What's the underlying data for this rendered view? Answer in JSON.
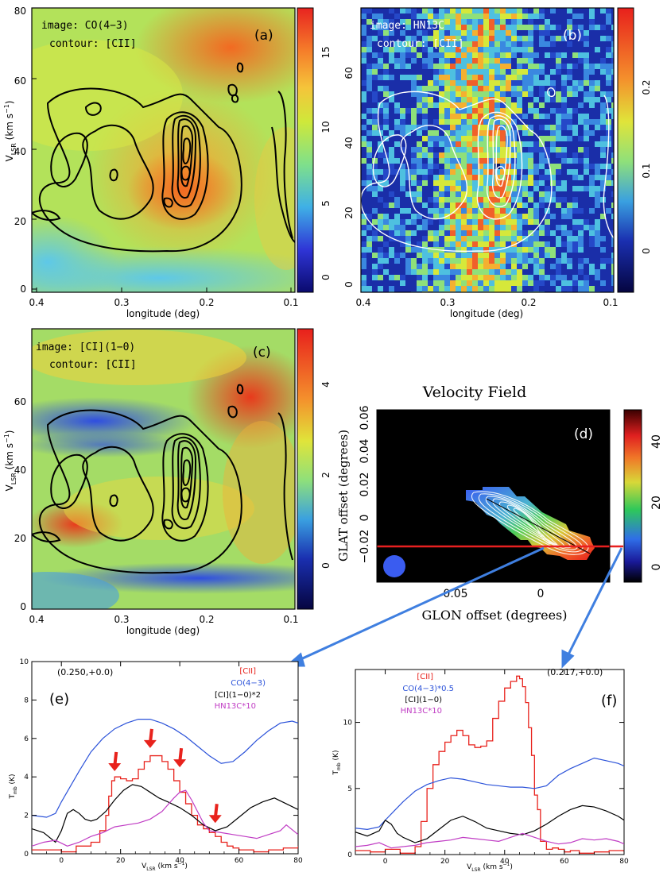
{
  "chart_data": [
    {
      "panel": "a",
      "type": "heatmap",
      "label": "(a)",
      "image_label": "image: CO(4−3)",
      "contour_label": "contour: [CII]",
      "xlabel": "longitude (deg)",
      "ylabel": "V",
      "ylabel_sub": "LSR",
      "ylabel_unit": "(km s",
      "ylabel_exp": "−1",
      "ylabel_close": ")",
      "xlim": [
        0.4,
        0.1
      ],
      "ylim": [
        -1,
        80
      ],
      "xticks": [
        "0.4",
        "0.3",
        "0.2",
        "0.1"
      ],
      "yticks": [
        "0",
        "20",
        "40",
        "60",
        "80"
      ],
      "colorbar_range": [
        -1,
        18
      ],
      "colorbar_ticks": [
        "0",
        "5",
        "10",
        "15"
      ]
    },
    {
      "panel": "b",
      "type": "heatmap",
      "label": "(b)",
      "image_label": "image: HN13C",
      "contour_label": "contour: [CII]",
      "xlabel": "longitude (deg)",
      "xlim": [
        0.4,
        0.1
      ],
      "ylim": [
        -1,
        77
      ],
      "xticks": [
        "0.4",
        "0.3",
        "0.2",
        "0.1"
      ],
      "yticks": [
        "0",
        "20",
        "40",
        "60"
      ],
      "colorbar_range": [
        -0.06,
        0.26
      ],
      "colorbar_ticks": [
        "0",
        "0.1",
        "0.2"
      ]
    },
    {
      "panel": "c",
      "type": "heatmap",
      "label": "(c)",
      "image_label": "image: [CI](1−0)",
      "contour_label": "contour: [CII]",
      "xlabel": "longitude (deg)",
      "ylabel": "V",
      "ylabel_sub": "LSR",
      "ylabel_unit": "(km s",
      "ylabel_exp": "−1",
      "ylabel_close": ")",
      "xlim": [
        0.4,
        0.1
      ],
      "ylim": [
        -1,
        77
      ],
      "xticks": [
        "0.4",
        "0.3",
        "0.2",
        "0.1"
      ],
      "yticks": [
        "0",
        "20",
        "40",
        "60"
      ],
      "colorbar_range": [
        -1,
        5.2
      ],
      "colorbar_ticks": [
        "0",
        "2",
        "4"
      ]
    },
    {
      "panel": "d",
      "type": "heatmap",
      "title": "Velocity Field",
      "label": "(d)",
      "xlabel": "GLON offset (degrees)",
      "ylabel": "GLAT offset (degrees)",
      "xlim": [
        0.095,
        -0.045
      ],
      "ylim": [
        -0.03,
        0.065
      ],
      "xticks": [
        "0.05",
        "0"
      ],
      "yticks": [
        "−0.02",
        "0",
        "0.02",
        "0.04",
        "0.06"
      ],
      "colorbar_range": [
        -5,
        48
      ],
      "colorbar_ticks": [
        "0",
        "20",
        "40"
      ]
    },
    {
      "panel": "e",
      "type": "line",
      "label": "(e)",
      "position_label": "(0.250,+0.0)",
      "xlabel_main": "V",
      "xlabel_sub": "LSR",
      "xlabel_unit": "(km s",
      "xlabel_exp": "−1",
      "xlabel_close": ")",
      "ylabel_main": "T",
      "ylabel_sub": "mb",
      "ylabel_unit": "(K)",
      "xlim": [
        -10,
        80
      ],
      "ylim": [
        0,
        10
      ],
      "xticks": [
        "0",
        "20",
        "40",
        "60",
        "80"
      ],
      "yticks": [
        "0",
        "2",
        "4",
        "6",
        "8",
        "10"
      ],
      "legend": [
        "[CII]",
        "CO(4−3)",
        "[CI](1−0)*2",
        "HN13C*10"
      ],
      "series": [
        {
          "name": "[CII]",
          "color": "#e8221c",
          "step": true,
          "x": [
            -10,
            -5,
            0,
            5,
            10,
            13,
            15,
            16,
            17,
            18,
            19,
            20,
            22,
            24,
            26,
            28,
            30,
            32,
            34,
            36,
            38,
            40,
            42,
            44,
            46,
            48,
            50,
            52,
            54,
            56,
            58,
            60,
            65,
            70,
            75,
            80
          ],
          "y": [
            0.2,
            0.2,
            0.1,
            0.4,
            0.6,
            1.2,
            2.0,
            3.0,
            3.8,
            4.0,
            4.0,
            3.9,
            3.8,
            3.9,
            4.4,
            4.8,
            5.1,
            5.1,
            4.8,
            4.4,
            3.8,
            3.2,
            2.6,
            2.0,
            1.5,
            1.3,
            1.1,
            0.9,
            0.6,
            0.4,
            0.3,
            0.2,
            0.1,
            0.2,
            0.3,
            0.4
          ]
        },
        {
          "name": "CO(4−3)",
          "color": "#2b52d9",
          "x": [
            -10,
            -5,
            -2,
            0,
            3,
            6,
            10,
            14,
            18,
            22,
            26,
            30,
            34,
            38,
            42,
            46,
            50,
            54,
            58,
            62,
            66,
            70,
            74,
            78,
            80
          ],
          "y": [
            2.0,
            1.9,
            2.1,
            2.7,
            3.5,
            4.3,
            5.3,
            6.0,
            6.5,
            6.8,
            7.0,
            7.0,
            6.8,
            6.5,
            6.1,
            5.6,
            5.1,
            4.7,
            4.8,
            5.3,
            5.9,
            6.4,
            6.8,
            6.9,
            6.8
          ]
        },
        {
          "name": "[CI](1−0)*2",
          "color": "#000000",
          "x": [
            -10,
            -6,
            -2,
            0,
            2,
            4,
            6,
            8,
            10,
            12,
            15,
            18,
            21,
            24,
            27,
            30,
            33,
            36,
            40,
            44,
            48,
            52,
            56,
            60,
            64,
            68,
            72,
            76,
            80
          ],
          "y": [
            1.3,
            1.1,
            0.6,
            1.2,
            2.1,
            2.3,
            2.1,
            1.8,
            1.7,
            1.8,
            2.2,
            2.8,
            3.3,
            3.6,
            3.5,
            3.2,
            2.9,
            2.7,
            2.4,
            2.0,
            1.5,
            1.2,
            1.4,
            1.9,
            2.4,
            2.7,
            2.9,
            2.6,
            2.3
          ]
        },
        {
          "name": "HN13C*10",
          "color": "#c03cc4",
          "x": [
            -10,
            -6,
            -2,
            2,
            6,
            10,
            14,
            18,
            22,
            26,
            30,
            34,
            38,
            40,
            42,
            44,
            46,
            48,
            50,
            54,
            58,
            62,
            66,
            70,
            74,
            76,
            80
          ],
          "y": [
            0.4,
            0.6,
            0.7,
            0.4,
            0.6,
            0.9,
            1.1,
            1.4,
            1.5,
            1.6,
            1.8,
            2.2,
            2.9,
            3.2,
            3.3,
            2.8,
            2.2,
            1.6,
            1.2,
            1.1,
            1.0,
            0.9,
            0.8,
            1.0,
            1.2,
            1.5,
            1.0
          ]
        }
      ],
      "arrow_x": [
        18,
        30,
        40,
        52
      ],
      "arrow_y": [
        4.3,
        5.5,
        4.5,
        1.6
      ]
    },
    {
      "panel": "f",
      "type": "line",
      "label": "(f)",
      "position_label": "(0.217,+0.0)",
      "xlabel_main": "V",
      "xlabel_sub": "LSR",
      "xlabel_unit": "(km s",
      "xlabel_exp": "−1",
      "xlabel_close": ")",
      "ylabel_main": "T",
      "ylabel_sub": "mb",
      "ylabel_unit": "(K)",
      "xlim": [
        -10,
        80
      ],
      "ylim": [
        0,
        14
      ],
      "xticks": [
        "0",
        "20",
        "40",
        "60",
        "80"
      ],
      "yticks": [
        "0",
        "5",
        "10"
      ],
      "legend": [
        "[CII]",
        "CO(4−3)*0.5",
        "[CI](1−0)",
        "HN13C*10"
      ],
      "series": [
        {
          "name": "[CII]",
          "color": "#e8221c",
          "step": true,
          "x": [
            -10,
            -5,
            0,
            5,
            10,
            12,
            14,
            16,
            18,
            20,
            22,
            24,
            26,
            28,
            30,
            32,
            34,
            36,
            38,
            40,
            42,
            44,
            45,
            46,
            47,
            48,
            49,
            50,
            51,
            52,
            54,
            56,
            58,
            60,
            62,
            65,
            70,
            75,
            80
          ],
          "y": [
            0.3,
            0.2,
            0.4,
            0.1,
            0.6,
            2.5,
            5.0,
            6.8,
            7.8,
            8.5,
            9.0,
            9.4,
            9.0,
            8.3,
            8.1,
            8.2,
            8.6,
            10.3,
            11.6,
            12.6,
            13.1,
            13.5,
            13.3,
            12.7,
            11.5,
            9.6,
            7.5,
            4.5,
            3.4,
            1.0,
            0.4,
            0.5,
            0.4,
            0.2,
            0.3,
            0.1,
            0.2,
            0.3,
            0.2
          ]
        },
        {
          "name": "CO(4−3)*0.5",
          "color": "#2b52d9",
          "x": [
            -10,
            -6,
            -2,
            0,
            3,
            6,
            10,
            14,
            18,
            22,
            26,
            30,
            34,
            38,
            42,
            46,
            50,
            54,
            58,
            62,
            66,
            70,
            74,
            78,
            80
          ],
          "y": [
            2.0,
            1.9,
            2.1,
            2.6,
            3.3,
            4.0,
            4.8,
            5.3,
            5.6,
            5.8,
            5.7,
            5.5,
            5.3,
            5.2,
            5.1,
            5.1,
            5.0,
            5.2,
            6.0,
            6.5,
            6.9,
            7.3,
            7.1,
            6.9,
            6.7
          ]
        },
        {
          "name": "[CI](1−0)",
          "color": "#000000",
          "x": [
            -10,
            -6,
            -2,
            0,
            2,
            4,
            6,
            8,
            10,
            14,
            18,
            22,
            26,
            30,
            34,
            38,
            42,
            46,
            50,
            54,
            58,
            62,
            66,
            70,
            74,
            78,
            80
          ],
          "y": [
            1.7,
            1.4,
            1.8,
            2.6,
            2.3,
            1.6,
            1.3,
            1.1,
            0.9,
            1.2,
            1.9,
            2.6,
            2.9,
            2.5,
            2.0,
            1.8,
            1.6,
            1.5,
            1.8,
            2.3,
            2.9,
            3.4,
            3.7,
            3.6,
            3.3,
            2.9,
            2.6
          ]
        },
        {
          "name": "HN13C*10",
          "color": "#c03cc4",
          "x": [
            -10,
            -6,
            -2,
            2,
            6,
            10,
            14,
            18,
            22,
            26,
            30,
            34,
            38,
            42,
            46,
            50,
            54,
            58,
            62,
            66,
            70,
            74,
            78,
            80
          ],
          "y": [
            0.6,
            0.7,
            0.9,
            0.5,
            0.6,
            0.7,
            0.9,
            1.0,
            1.1,
            1.3,
            1.2,
            1.1,
            1.0,
            1.3,
            1.6,
            1.3,
            1.0,
            0.8,
            0.9,
            1.2,
            1.1,
            1.2,
            1.0,
            0.8
          ]
        }
      ]
    }
  ]
}
